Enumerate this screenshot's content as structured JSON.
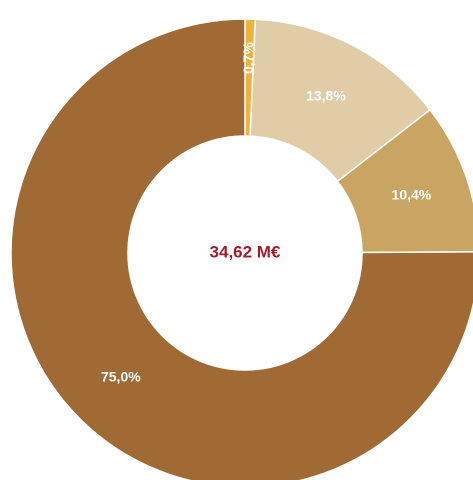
{
  "chart_data": {
    "type": "donut",
    "center_label": "34,62 M€",
    "categories": [
      null,
      null,
      null,
      null
    ],
    "values": [
      0.7,
      13.8,
      10.4,
      75.0
    ],
    "value_labels": [
      "0,7%",
      "13,8%",
      "10,4%",
      "75,0%"
    ],
    "colors": [
      "#f0b23e",
      "#e0cda8",
      "#c9a462",
      "#9f6a34"
    ]
  }
}
